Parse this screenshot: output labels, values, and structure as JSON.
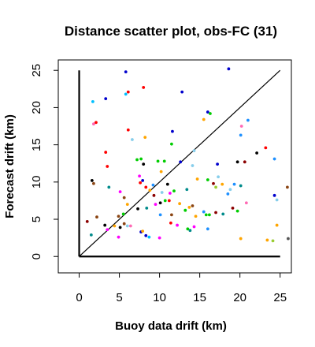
{
  "chart_data": {
    "type": "scatter",
    "title": "Distance scatter plot, obs-FC (31)",
    "xlabel": "Buoy data drift (km)",
    "ylabel": "Forecast drift (km)",
    "xlim": [
      -2.6,
      26.4
    ],
    "ylim": [
      -2.2,
      26.4
    ],
    "xticks": [
      0,
      5,
      10,
      15,
      20,
      25
    ],
    "xtick_labels": [
      "0",
      "5",
      "10",
      "15",
      "20",
      "25"
    ],
    "yticks": [
      0,
      5,
      10,
      15,
      20,
      25
    ],
    "ytick_labels": [
      "0",
      "5",
      "10",
      "15",
      "20",
      "25"
    ],
    "grid": false,
    "legend": "none",
    "reference_line": {
      "from": [
        0,
        0
      ],
      "to": [
        25,
        25
      ],
      "color": "#000000"
    },
    "zero_axes": {
      "x_from": 0,
      "x_to": 25,
      "y_from": 0,
      "y_to": 25,
      "color": "#000000"
    },
    "points": [
      {
        "x": 5.8,
        "y": 24.8,
        "color": "#0000cd"
      },
      {
        "x": 18.6,
        "y": 25.2,
        "color": "#0000cd"
      },
      {
        "x": 3.3,
        "y": 21.2,
        "color": "#0000cd"
      },
      {
        "x": 5.8,
        "y": 21.8,
        "color": "#00bfff"
      },
      {
        "x": 6.1,
        "y": 22.1,
        "color": "#ff0000"
      },
      {
        "x": 8.0,
        "y": 22.7,
        "color": "#ff0000"
      },
      {
        "x": 1.7,
        "y": 20.8,
        "color": "#00bfff"
      },
      {
        "x": 12.8,
        "y": 22.1,
        "color": "#0000cd"
      },
      {
        "x": 1.8,
        "y": 17.8,
        "color": "#ff69b4"
      },
      {
        "x": 2.1,
        "y": 18.0,
        "color": "#ff0000"
      },
      {
        "x": 16.0,
        "y": 19.4,
        "color": "#0000cd"
      },
      {
        "x": 21.0,
        "y": 18.3,
        "color": "#1e90ff"
      },
      {
        "x": 20.2,
        "y": 17.5,
        "color": "#ff69b4"
      },
      {
        "x": 6.1,
        "y": 17.0,
        "color": "#ff0000"
      },
      {
        "x": 8.2,
        "y": 16.0,
        "color": "#ffa500"
      },
      {
        "x": 11.6,
        "y": 16.8,
        "color": "#0000cd"
      },
      {
        "x": 20.1,
        "y": 16.3,
        "color": "#1e90ff"
      },
      {
        "x": 15.5,
        "y": 18.4,
        "color": "#ffa500"
      },
      {
        "x": 3.3,
        "y": 14.0,
        "color": "#ff0000"
      },
      {
        "x": 6.6,
        "y": 15.7,
        "color": "#87ceeb"
      },
      {
        "x": 11.5,
        "y": 15.1,
        "color": "#00cd00"
      },
      {
        "x": 14.3,
        "y": 14.2,
        "color": "#87ceeb"
      },
      {
        "x": 23.2,
        "y": 14.6,
        "color": "#ff0000"
      },
      {
        "x": 22.1,
        "y": 13.9,
        "color": "#000000"
      },
      {
        "x": 3.5,
        "y": 12.1,
        "color": "#ff0000"
      },
      {
        "x": 7.2,
        "y": 13.0,
        "color": "#00cd00"
      },
      {
        "x": 7.7,
        "y": 13.1,
        "color": "#00cd00"
      },
      {
        "x": 8.0,
        "y": 12.4,
        "color": "#000000"
      },
      {
        "x": 12.6,
        "y": 12.7,
        "color": "#0000cd"
      },
      {
        "x": 9.8,
        "y": 12.8,
        "color": "#00cd00"
      },
      {
        "x": 10.6,
        "y": 12.8,
        "color": "#00cd00"
      },
      {
        "x": 14.1,
        "y": 12.2,
        "color": "#87ceeb"
      },
      {
        "x": 17.2,
        "y": 12.4,
        "color": "#0000cd"
      },
      {
        "x": 19.7,
        "y": 12.7,
        "color": "#000000"
      },
      {
        "x": 20.6,
        "y": 12.7,
        "color": "#8b0000"
      },
      {
        "x": 24.3,
        "y": 13.1,
        "color": "#1e90ff"
      },
      {
        "x": 1.6,
        "y": 10.2,
        "color": "#000000"
      },
      {
        "x": 1.8,
        "y": 9.8,
        "color": "#8b4513"
      },
      {
        "x": 7.5,
        "y": 10.8,
        "color": "#ff00ff"
      },
      {
        "x": 7.9,
        "y": 10.2,
        "color": "#0000cd"
      },
      {
        "x": 10.2,
        "y": 11.4,
        "color": "#ffa500"
      },
      {
        "x": 7.6,
        "y": 9.9,
        "color": "#ff0000"
      },
      {
        "x": 8.3,
        "y": 9.3,
        "color": "#ff0000"
      },
      {
        "x": 8.8,
        "y": 8.9,
        "color": "#ffa500"
      },
      {
        "x": 9.2,
        "y": 9.6,
        "color": "#1e90ff"
      },
      {
        "x": 11.0,
        "y": 9.7,
        "color": "#000000"
      },
      {
        "x": 11.3,
        "y": 8.5,
        "color": "#ff00ff"
      },
      {
        "x": 9.3,
        "y": 8.2,
        "color": "#8b0000"
      },
      {
        "x": 10.3,
        "y": 8.6,
        "color": "#87ceeb"
      },
      {
        "x": 11.8,
        "y": 8.8,
        "color": "#00cd00"
      },
      {
        "x": 13.4,
        "y": 9.0,
        "color": "#008b8b"
      },
      {
        "x": 14.7,
        "y": 10.4,
        "color": "#ffa500"
      },
      {
        "x": 16.0,
        "y": 10.3,
        "color": "#00cd00"
      },
      {
        "x": 16.7,
        "y": 9.8,
        "color": "#8b0000"
      },
      {
        "x": 17.3,
        "y": 10.7,
        "color": "#87ceeb"
      },
      {
        "x": 17.0,
        "y": 9.3,
        "color": "#9acd32"
      },
      {
        "x": 17.8,
        "y": 9.7,
        "color": "#ffa500"
      },
      {
        "x": 18.8,
        "y": 9.0,
        "color": "#87ceeb"
      },
      {
        "x": 19.3,
        "y": 9.7,
        "color": "#1e90ff"
      },
      {
        "x": 20.1,
        "y": 9.5,
        "color": "#008b8b"
      },
      {
        "x": 18.5,
        "y": 8.4,
        "color": "#1e90ff"
      },
      {
        "x": 3.7,
        "y": 9.3,
        "color": "#008b8b"
      },
      {
        "x": 5.1,
        "y": 8.7,
        "color": "#ff00ff"
      },
      {
        "x": 10.1,
        "y": 7.2,
        "color": "#000000"
      },
      {
        "x": 9.5,
        "y": 7.0,
        "color": "#ff00ff"
      },
      {
        "x": 11.2,
        "y": 7.5,
        "color": "#ff0000"
      },
      {
        "x": 10.7,
        "y": 7.5,
        "color": "#00cd00"
      },
      {
        "x": 12.5,
        "y": 7.1,
        "color": "#ffa500"
      },
      {
        "x": 6.0,
        "y": 7.0,
        "color": "#ffa500"
      },
      {
        "x": 5.6,
        "y": 7.9,
        "color": "#8b4513"
      },
      {
        "x": 7.3,
        "y": 6.4,
        "color": "#000000"
      },
      {
        "x": 8.4,
        "y": 6.5,
        "color": "#008b8b"
      },
      {
        "x": 10.1,
        "y": 5.6,
        "color": "#1e90ff"
      },
      {
        "x": 11.5,
        "y": 5.6,
        "color": "#8b4513"
      },
      {
        "x": 13.2,
        "y": 6.2,
        "color": "#00cd00"
      },
      {
        "x": 13.7,
        "y": 6.6,
        "color": "#ffa500"
      },
      {
        "x": 14.1,
        "y": 6.8,
        "color": "#8b4513"
      },
      {
        "x": 14.5,
        "y": 5.4,
        "color": "#ffa500"
      },
      {
        "x": 15.5,
        "y": 6.0,
        "color": "#1e90ff"
      },
      {
        "x": 15.8,
        "y": 5.6,
        "color": "#00cd00"
      },
      {
        "x": 16.2,
        "y": 5.6,
        "color": "#00cd00"
      },
      {
        "x": 17.0,
        "y": 5.9,
        "color": "#8b0000"
      },
      {
        "x": 17.9,
        "y": 5.7,
        "color": "#008b8b"
      },
      {
        "x": 19.1,
        "y": 6.5,
        "color": "#8b0000"
      },
      {
        "x": 19.7,
        "y": 6.1,
        "color": "#00cd00"
      },
      {
        "x": 20.8,
        "y": 7.2,
        "color": "#ff69b4"
      },
      {
        "x": 25.9,
        "y": 9.3,
        "color": "#8b4513"
      },
      {
        "x": 24.6,
        "y": 7.6,
        "color": "#87ceeb"
      },
      {
        "x": 24.3,
        "y": 8.2,
        "color": "#0000cd"
      },
      {
        "x": 2.2,
        "y": 5.3,
        "color": "#8b4513"
      },
      {
        "x": 1.0,
        "y": 4.7,
        "color": "#8b0000"
      },
      {
        "x": 3.2,
        "y": 4.2,
        "color": "#000000"
      },
      {
        "x": 3.5,
        "y": 3.6,
        "color": "#ff00ff"
      },
      {
        "x": 4.4,
        "y": 4.1,
        "color": "#ffa500"
      },
      {
        "x": 5.1,
        "y": 3.9,
        "color": "#000000"
      },
      {
        "x": 5.6,
        "y": 4.4,
        "color": "#8b4513"
      },
      {
        "x": 6.0,
        "y": 4.1,
        "color": "#87ceeb"
      },
      {
        "x": 6.4,
        "y": 4.1,
        "color": "#ff69b4"
      },
      {
        "x": 4.9,
        "y": 5.4,
        "color": "#8b4513"
      },
      {
        "x": 5.5,
        "y": 5.7,
        "color": "#00cd00"
      },
      {
        "x": 11.4,
        "y": 4.5,
        "color": "#ff0000"
      },
      {
        "x": 12.2,
        "y": 4.2,
        "color": "#ff00ff"
      },
      {
        "x": 14.3,
        "y": 4.0,
        "color": "#ff00ff"
      },
      {
        "x": 13.8,
        "y": 3.5,
        "color": "#008b8b"
      },
      {
        "x": 13.5,
        "y": 3.7,
        "color": "#00cd00"
      },
      {
        "x": 16.0,
        "y": 3.7,
        "color": "#1e90ff"
      },
      {
        "x": 1.5,
        "y": 2.9,
        "color": "#008b8b"
      },
      {
        "x": 4.9,
        "y": 2.6,
        "color": "#ff00ff"
      },
      {
        "x": 7.7,
        "y": 3.3,
        "color": "#0000cd"
      },
      {
        "x": 7.9,
        "y": 3.4,
        "color": "#ffa500"
      },
      {
        "x": 8.3,
        "y": 2.8,
        "color": "#0000cd"
      },
      {
        "x": 8.7,
        "y": 2.6,
        "color": "#00bfff"
      },
      {
        "x": 10.0,
        "y": 2.5,
        "color": "#ff00ff"
      },
      {
        "x": 20.1,
        "y": 2.4,
        "color": "#ffa500"
      },
      {
        "x": 23.4,
        "y": 2.2,
        "color": "#ffa500"
      },
      {
        "x": 24.1,
        "y": 2.1,
        "color": "#9acd32"
      },
      {
        "x": 24.6,
        "y": 4.2,
        "color": "#ffa500"
      },
      {
        "x": 26.0,
        "y": 2.4,
        "color": "#555555"
      },
      {
        "x": 16.3,
        "y": 19.2,
        "color": "#00cd00"
      }
    ]
  }
}
